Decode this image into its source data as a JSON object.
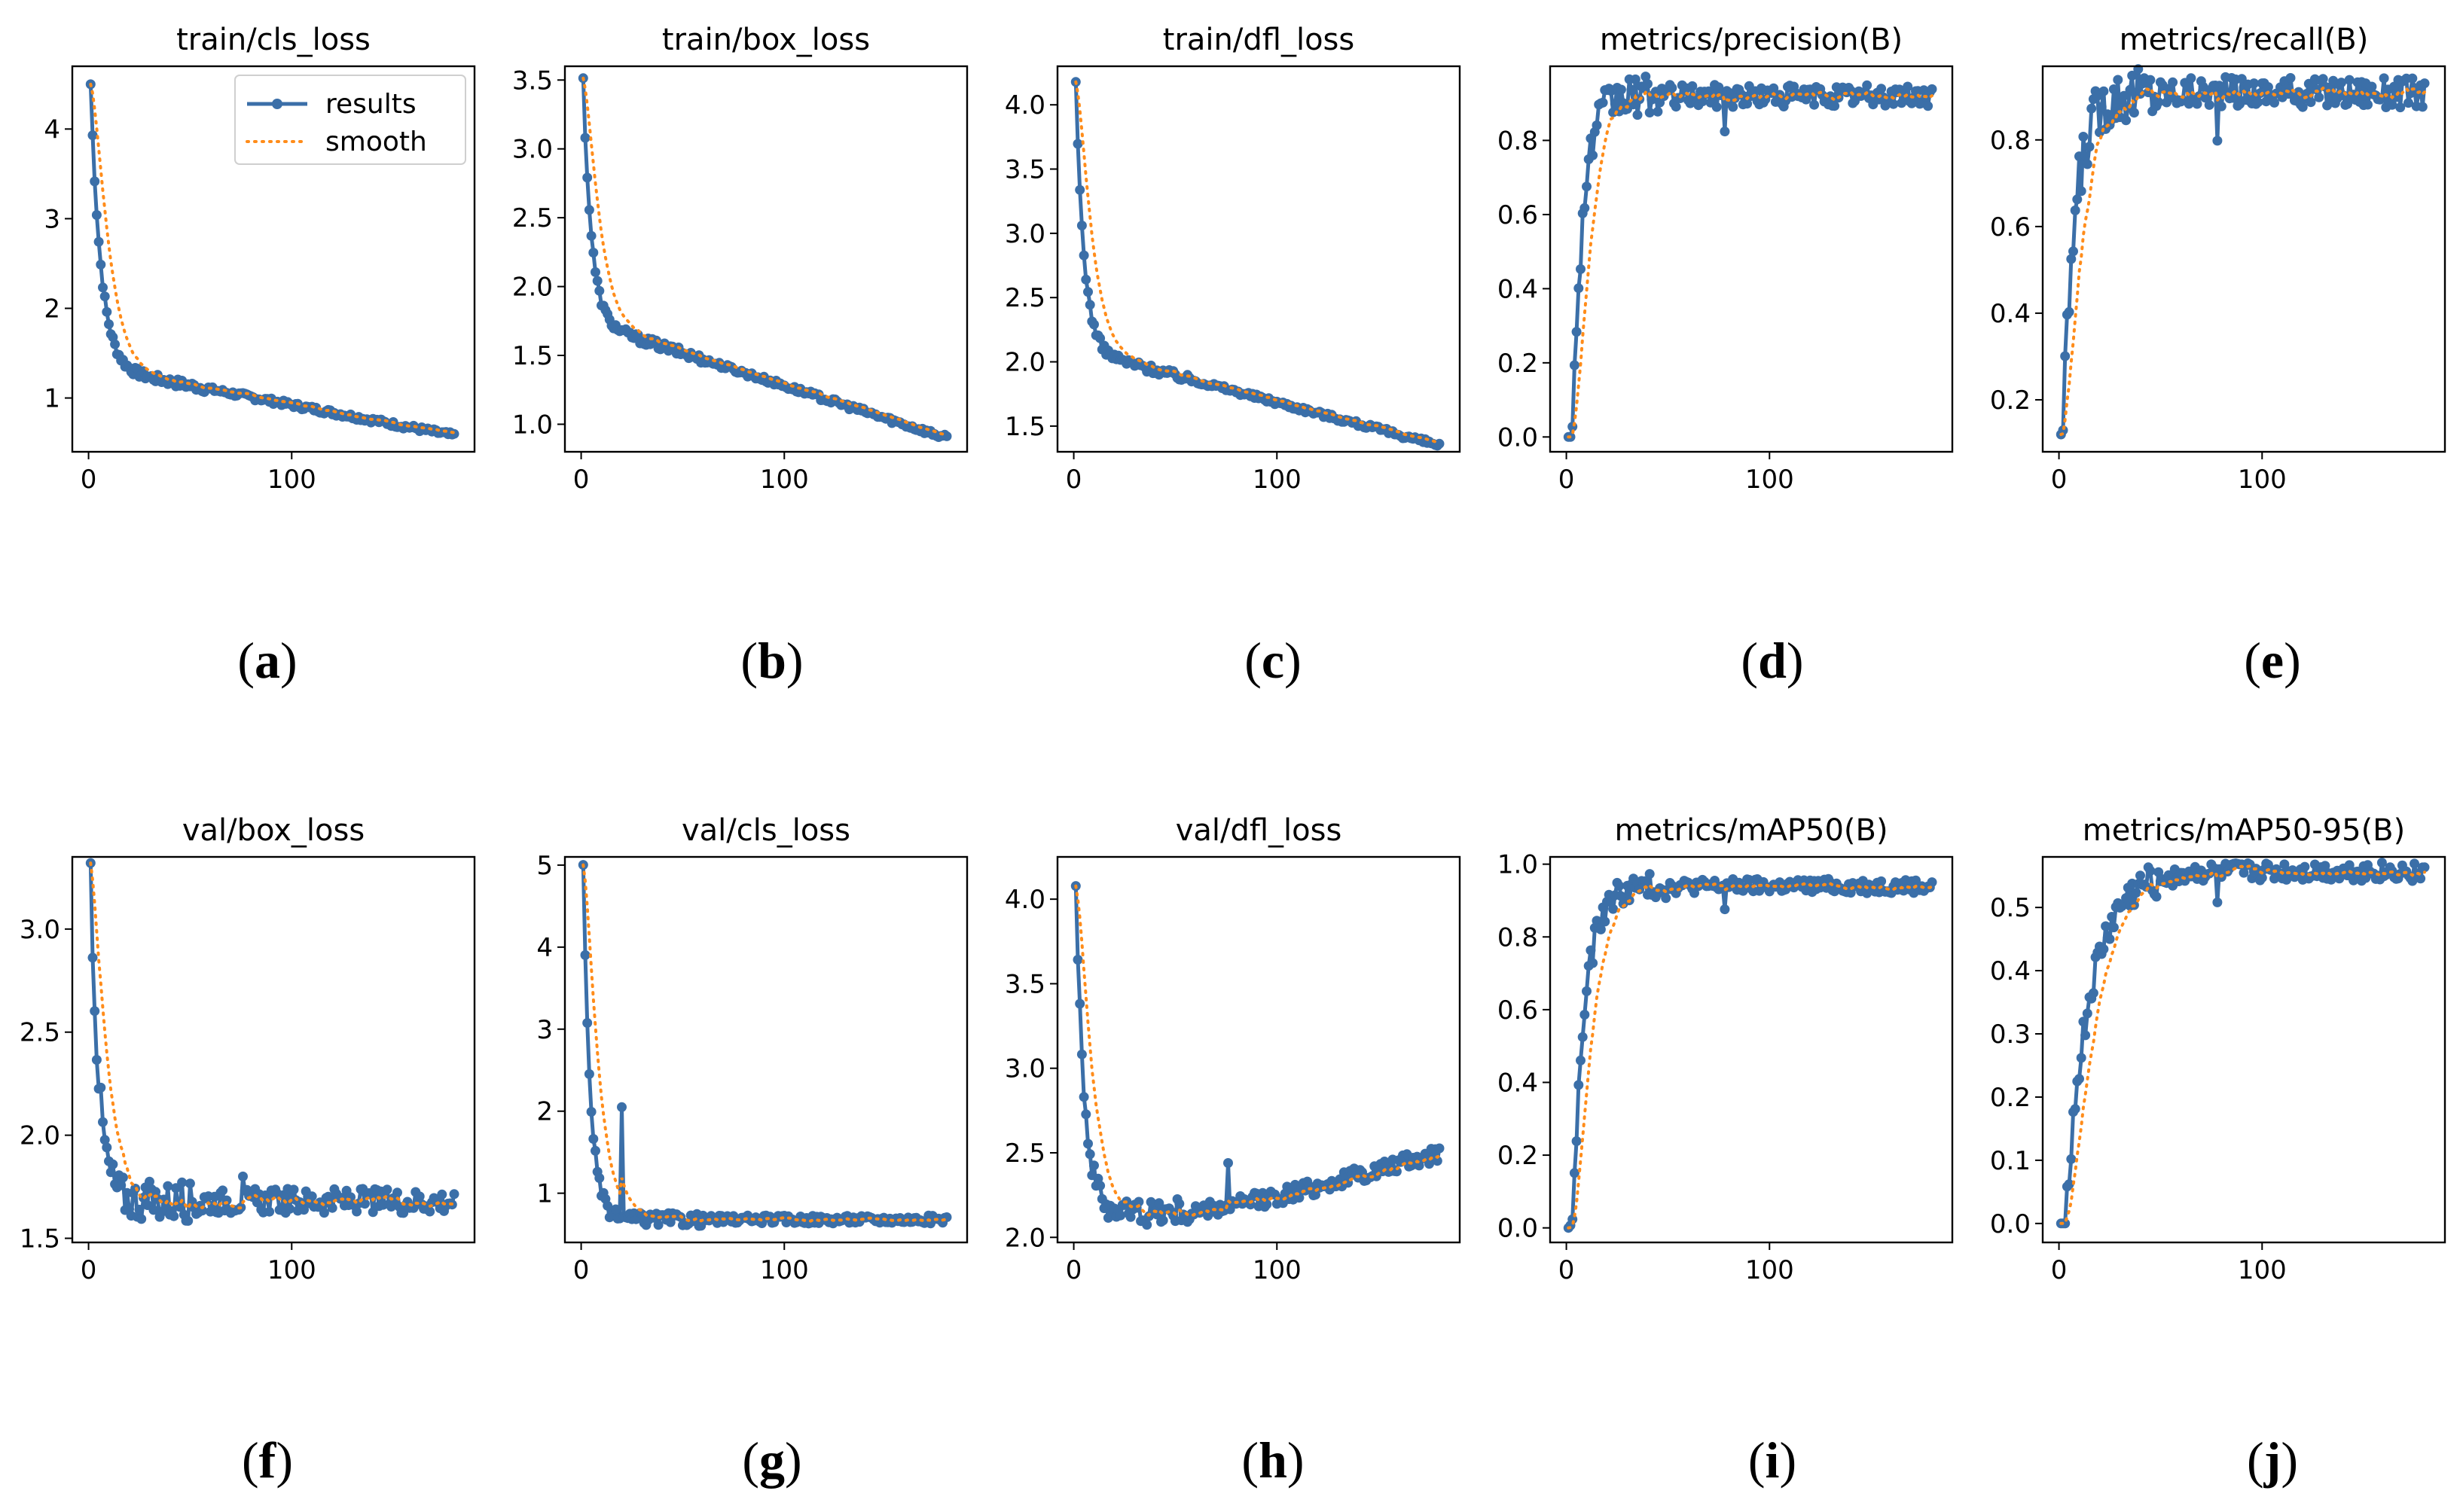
{
  "figure": {
    "labels": [
      "(a)",
      "(b)",
      "(c)",
      "(d)",
      "(e)",
      "(f)",
      "(g)",
      "(h)",
      "(i)",
      "(j)"
    ]
  },
  "legend": {
    "results": "results",
    "smooth": "smooth"
  },
  "colors": {
    "results": "#3b6fa8",
    "smooth": "#ff8c1a"
  },
  "chart_data": [
    {
      "type": "line",
      "label": "(a)",
      "title": "train/cls_loss",
      "xlim": [
        -8,
        190
      ],
      "ylim": [
        0.4,
        4.7
      ],
      "xticks": [
        0,
        100
      ],
      "yticks": [
        1,
        2,
        3,
        4
      ],
      "decay": {
        "start": 4.5,
        "end": 0.58,
        "mid": 1.35,
        "tau": 5,
        "noise": 0.03
      },
      "legend": "upper right"
    },
    {
      "type": "line",
      "label": "(b)",
      "title": "train/box_loss",
      "xlim": [
        -8,
        190
      ],
      "ylim": [
        0.8,
        3.6
      ],
      "xticks": [
        0,
        100
      ],
      "yticks": [
        1.0,
        1.5,
        2.0,
        2.5,
        3.0,
        3.5
      ],
      "decay": {
        "start": 3.5,
        "end": 0.9,
        "mid": 1.75,
        "tau": 4,
        "noise": 0.02
      }
    },
    {
      "type": "line",
      "label": "(c)",
      "title": "train/dfl_loss",
      "xlim": [
        -8,
        190
      ],
      "ylim": [
        1.3,
        4.3
      ],
      "xticks": [
        0,
        100
      ],
      "yticks": [
        1.5,
        2.0,
        2.5,
        3.0,
        3.5,
        4.0
      ],
      "decay": {
        "start": 4.15,
        "end": 1.35,
        "mid": 2.1,
        "tau": 4,
        "noise": 0.02
      }
    },
    {
      "type": "line",
      "label": "(d)",
      "title": "metrics/precision(B)",
      "xlim": [
        -8,
        190
      ],
      "ylim": [
        -0.04,
        1.0
      ],
      "xticks": [
        0,
        100
      ],
      "yticks": [
        0.0,
        0.2,
        0.4,
        0.6,
        0.8
      ],
      "rise": {
        "start": 0.0,
        "plateau": 0.92,
        "tau": 5,
        "delay": 3,
        "noise": 0.03
      }
    },
    {
      "type": "line",
      "label": "(e)",
      "title": "metrics/recall(B)",
      "xlim": [
        -8,
        190
      ],
      "ylim": [
        0.08,
        0.97
      ],
      "xticks": [
        0,
        100
      ],
      "yticks": [
        0.2,
        0.4,
        0.6,
        0.8
      ],
      "rise": {
        "start": 0.12,
        "plateau": 0.91,
        "tau": 6,
        "delay": 2,
        "noise": 0.035
      }
    },
    {
      "type": "line",
      "label": "(f)",
      "title": "val/box_loss",
      "xlim": [
        -8,
        190
      ],
      "ylim": [
        1.48,
        3.35
      ],
      "xticks": [
        0,
        100
      ],
      "yticks": [
        1.5,
        2.0,
        2.5,
        3.0
      ],
      "decay": {
        "start": 3.3,
        "end": 1.68,
        "mid": 1.68,
        "tau": 4,
        "noise": 0.06,
        "spike": [
          76,
          1.8
        ]
      }
    },
    {
      "type": "line",
      "label": "(g)",
      "title": "val/cls_loss",
      "xlim": [
        -8,
        190
      ],
      "ylim": [
        0.4,
        5.1
      ],
      "xticks": [
        0,
        100
      ],
      "yticks": [
        1,
        2,
        3,
        4,
        5
      ],
      "decay": {
        "start": 4.95,
        "end": 0.68,
        "mid": 0.68,
        "tau": 3.5,
        "noise": 0.05,
        "spike": [
          20,
          2.05
        ]
      }
    },
    {
      "type": "line",
      "label": "(h)",
      "title": "val/dfl_loss",
      "xlim": [
        -8,
        190
      ],
      "ylim": [
        1.97,
        4.25
      ],
      "xticks": [
        0,
        100
      ],
      "yticks": [
        2.0,
        2.5,
        3.0,
        3.5,
        4.0
      ],
      "decay": {
        "start": 4.15,
        "end": 2.5,
        "mid": 2.15,
        "tau": 4,
        "noise": 0.05,
        "spike": [
          76,
          2.44
        ],
        "rebound": true
      }
    },
    {
      "type": "line",
      "label": "(i)",
      "title": "metrics/mAP50(B)",
      "xlim": [
        -8,
        190
      ],
      "ylim": [
        -0.04,
        1.02
      ],
      "xticks": [
        0,
        100
      ],
      "yticks": [
        0.0,
        0.2,
        0.4,
        0.6,
        0.8,
        1.0
      ],
      "rise": {
        "start": 0.0,
        "plateau": 0.94,
        "tau": 6,
        "delay": 3,
        "noise": 0.02
      }
    },
    {
      "type": "line",
      "label": "(j)",
      "title": "metrics/mAP50-95(B)",
      "xlim": [
        -8,
        190
      ],
      "ylim": [
        -0.03,
        0.58
      ],
      "xticks": [
        0,
        100
      ],
      "yticks": [
        0.0,
        0.1,
        0.2,
        0.3,
        0.4,
        0.5
      ],
      "rise": {
        "start": 0.0,
        "plateau": 0.556,
        "tau": 12,
        "delay": 3,
        "noise": 0.015
      }
    }
  ]
}
